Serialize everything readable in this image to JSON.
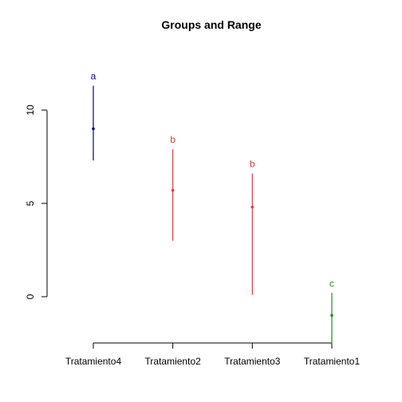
{
  "chart_data": {
    "type": "errorbar",
    "title": "Groups and Range",
    "xlabel": "",
    "ylabel": "",
    "categories": [
      "Tratamiento4",
      "Tratamiento2",
      "Tratamiento3",
      "Tratamiento1"
    ],
    "points": [
      {
        "category": "Tratamiento4",
        "mean": 9.0,
        "low": 7.3,
        "high": 11.3,
        "group": "a",
        "color": "#00008B"
      },
      {
        "category": "Tratamiento2",
        "mean": 5.7,
        "low": 3.0,
        "high": 7.9,
        "group": "b",
        "color": "#DF3B3B"
      },
      {
        "category": "Tratamiento3",
        "mean": 4.8,
        "low": 0.1,
        "high": 6.6,
        "group": "b",
        "color": "#DF3B3B"
      },
      {
        "category": "Tratamiento1",
        "mean": -1.0,
        "low": -2.5,
        "high": 0.2,
        "group": "c",
        "color": "#228B22"
      }
    ],
    "y_ticks": [
      0,
      5,
      10
    ],
    "y_tick_labels": [
      "0",
      "5",
      "10"
    ],
    "ylim": [
      -2.5,
      12.5
    ],
    "grid": false,
    "legend": "none"
  }
}
